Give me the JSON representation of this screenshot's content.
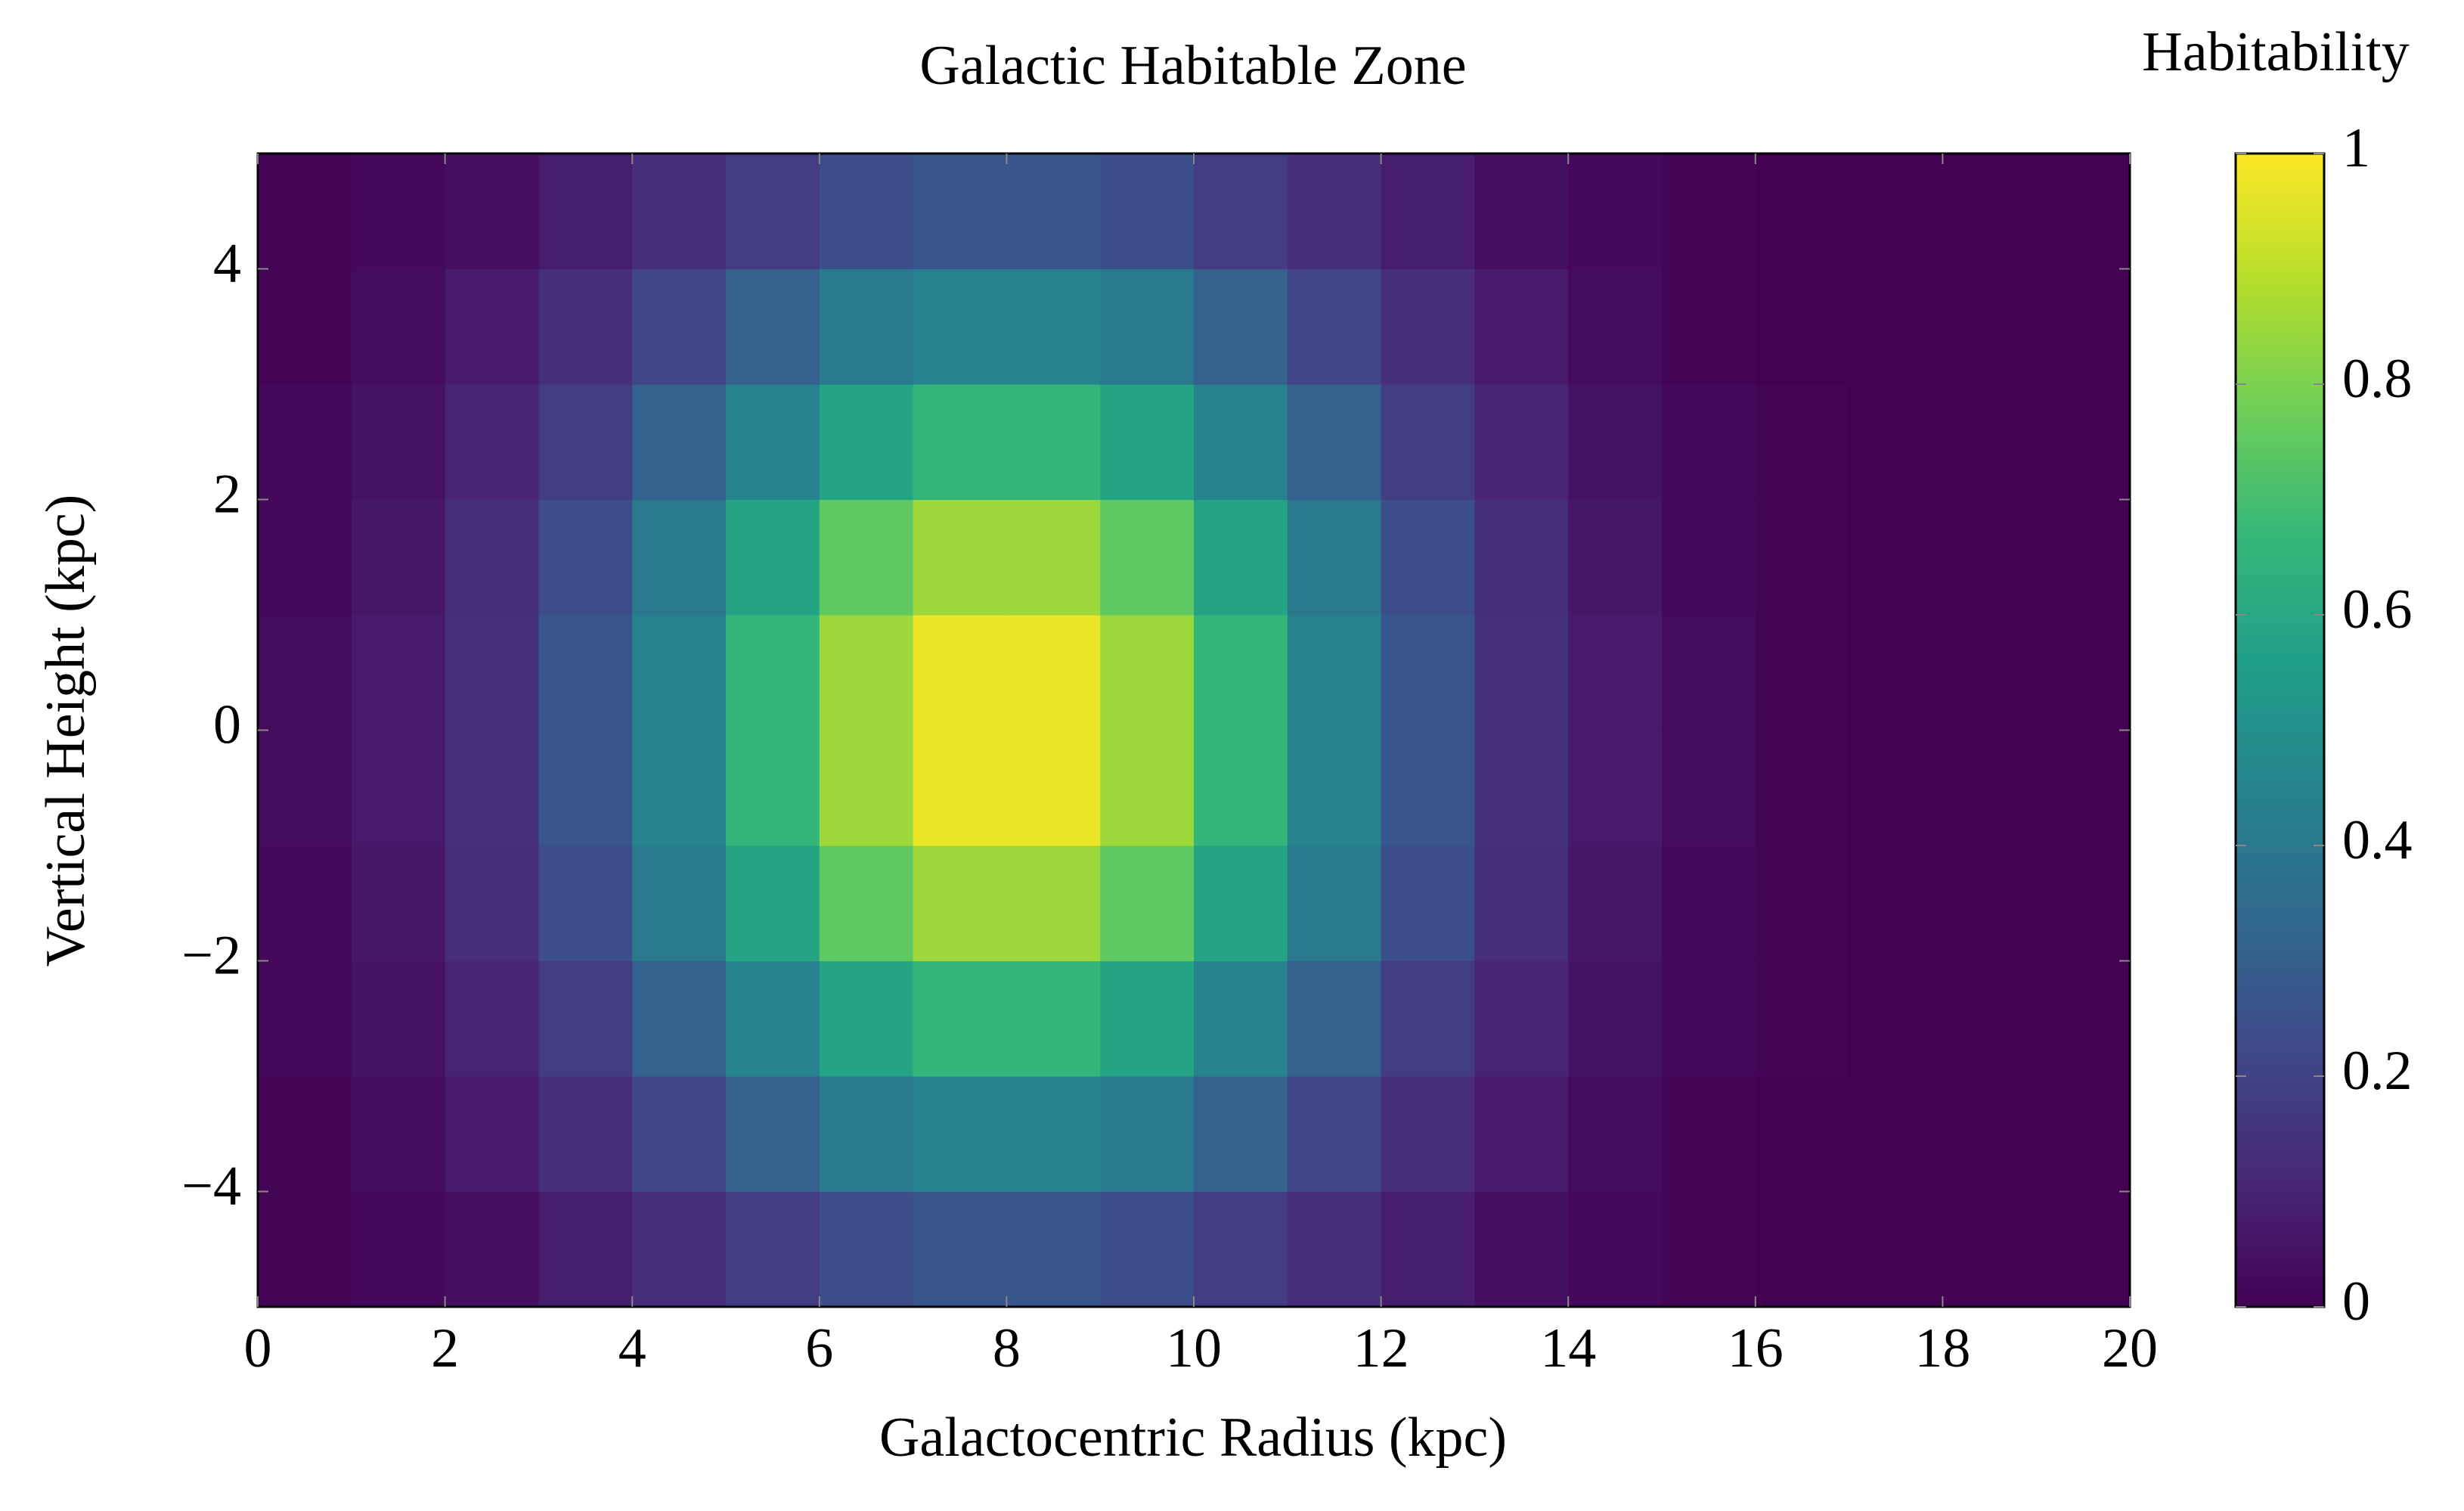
{
  "chart_data": {
    "type": "heatmap",
    "title": "Galactic Habitable Zone",
    "xlabel": "Galactocentric Radius (kpc)",
    "ylabel": "Vertical Height (kpc)",
    "colorbar_label": "Habitability",
    "xbins": [
      0,
      1,
      2,
      3,
      4,
      5,
      6,
      7,
      8,
      9,
      10,
      11,
      12,
      13,
      14,
      15,
      16,
      17,
      18,
      19,
      20
    ],
    "ybins": [
      -5,
      -4,
      -3,
      -2,
      -1,
      0,
      1,
      2,
      3,
      4,
      5
    ],
    "z": [
      [
        0.01,
        0.02,
        0.04,
        0.08,
        0.13,
        0.18,
        0.24,
        0.27,
        0.27,
        0.24,
        0.18,
        0.13,
        0.08,
        0.04,
        0.02,
        0.01,
        0,
        0,
        0,
        0
      ],
      [
        0.01,
        0.03,
        0.07,
        0.13,
        0.21,
        0.31,
        0.4,
        0.45,
        0.45,
        0.4,
        0.31,
        0.21,
        0.13,
        0.07,
        0.03,
        0.01,
        0,
        0,
        0,
        0
      ],
      [
        0.02,
        0.05,
        0.1,
        0.18,
        0.31,
        0.45,
        0.58,
        0.66,
        0.66,
        0.58,
        0.45,
        0.31,
        0.18,
        0.1,
        0.05,
        0.02,
        0.01,
        0,
        0,
        0
      ],
      [
        0.02,
        0.06,
        0.13,
        0.24,
        0.4,
        0.58,
        0.75,
        0.85,
        0.85,
        0.75,
        0.58,
        0.4,
        0.24,
        0.13,
        0.06,
        0.02,
        0.01,
        0,
        0,
        0
      ],
      [
        0.03,
        0.07,
        0.14,
        0.27,
        0.45,
        0.66,
        0.85,
        0.97,
        0.97,
        0.85,
        0.66,
        0.45,
        0.27,
        0.14,
        0.07,
        0.03,
        0.01,
        0,
        0,
        0
      ],
      [
        0.03,
        0.07,
        0.14,
        0.27,
        0.45,
        0.66,
        0.85,
        0.97,
        0.97,
        0.85,
        0.66,
        0.45,
        0.27,
        0.14,
        0.07,
        0.03,
        0.01,
        0,
        0,
        0
      ],
      [
        0.02,
        0.06,
        0.13,
        0.24,
        0.4,
        0.58,
        0.75,
        0.85,
        0.85,
        0.75,
        0.58,
        0.4,
        0.24,
        0.13,
        0.06,
        0.02,
        0.01,
        0,
        0,
        0
      ],
      [
        0.02,
        0.05,
        0.1,
        0.18,
        0.31,
        0.45,
        0.58,
        0.66,
        0.66,
        0.58,
        0.45,
        0.31,
        0.18,
        0.1,
        0.05,
        0.02,
        0.01,
        0,
        0,
        0
      ],
      [
        0.01,
        0.03,
        0.07,
        0.13,
        0.21,
        0.31,
        0.4,
        0.45,
        0.45,
        0.4,
        0.31,
        0.21,
        0.13,
        0.07,
        0.03,
        0.01,
        0,
        0,
        0,
        0
      ],
      [
        0.01,
        0.02,
        0.04,
        0.08,
        0.13,
        0.18,
        0.24,
        0.27,
        0.27,
        0.24,
        0.18,
        0.13,
        0.08,
        0.04,
        0.02,
        0.01,
        0,
        0,
        0,
        0
      ]
    ],
    "xlim": [
      0,
      20
    ],
    "xticks": [
      0,
      2,
      4,
      6,
      8,
      10,
      12,
      14,
      16,
      18,
      20
    ],
    "ylim": [
      -5,
      5
    ],
    "yticks": [
      {
        "value": -4,
        "label": "−4"
      },
      {
        "value": -2,
        "label": "−2"
      },
      0,
      2,
      4
    ],
    "clim": [
      0,
      1
    ],
    "cticks": [
      0,
      0.2,
      0.4,
      0.6,
      0.8,
      1
    ],
    "colormap": [
      "#440154",
      "#482878",
      "#3e4989",
      "#31688e",
      "#26828e",
      "#1f9e89",
      "#35b779",
      "#6ece58",
      "#b5de2b",
      "#fde725"
    ]
  }
}
